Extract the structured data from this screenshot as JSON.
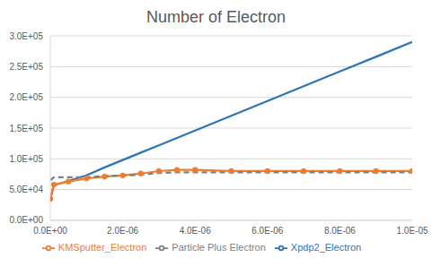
{
  "chart_data": {
    "type": "line",
    "title": "Number of Electron",
    "x": [
      0,
      1e-07,
      5e-07,
      1e-06,
      1.5e-06,
      2e-06,
      2.5e-06,
      3e-06,
      3.5e-06,
      4e-06,
      5e-06,
      6e-06,
      7e-06,
      8e-06,
      9e-06,
      1e-05
    ],
    "series": [
      {
        "name": "Xpdp2_Electron",
        "color": "#2e75b6",
        "marker": "none",
        "line_style": "solid",
        "values": [
          35000,
          57000,
          64000,
          73000,
          86000,
          98000,
          110000,
          122000,
          134000,
          146000,
          170000,
          194000,
          218000,
          242000,
          266000,
          290000
        ]
      },
      {
        "name": "KMSputter_Electron",
        "color": "#ed7d31",
        "marker": "circle",
        "line_style": "solid",
        "values": [
          35000,
          58000,
          63000,
          68000,
          71000,
          73000,
          76000,
          80000,
          82000,
          82000,
          80000,
          80000,
          80000,
          80000,
          80000,
          80000
        ]
      },
      {
        "name": "Particle Plus Electron",
        "color": "#7f7f7f",
        "marker": "none",
        "line_style": "dashed",
        "values": [
          65000,
          70000,
          70000,
          70000,
          72000,
          73000,
          74000,
          77000,
          78000,
          78000,
          78000,
          78000,
          78000,
          78000,
          78000,
          78000
        ]
      }
    ],
    "xlim": [
      0,
      1e-05
    ],
    "xticks": [
      {
        "value": 0,
        "label": "0.0E+00"
      },
      {
        "value": 2e-06,
        "label": "2.0E-06"
      },
      {
        "value": 4e-06,
        "label": "4.0E-06"
      },
      {
        "value": 6e-06,
        "label": "6.0E-06"
      },
      {
        "value": 8e-06,
        "label": "8.0E-06"
      },
      {
        "value": 1e-05,
        "label": "1.0E-05"
      }
    ],
    "ylim": [
      0,
      300000
    ],
    "yticks": [
      {
        "value": 0,
        "label": "0.0E+00"
      },
      {
        "value": 50000,
        "label": "5.0E+04"
      },
      {
        "value": 100000,
        "label": "1.0E+05"
      },
      {
        "value": 150000,
        "label": "1.5E+05"
      },
      {
        "value": 200000,
        "label": "2.0E+05"
      },
      {
        "value": 250000,
        "label": "2.5E+05"
      },
      {
        "value": 300000,
        "label": "3.0E+05"
      }
    ],
    "grid": true,
    "legend": "bottom"
  }
}
